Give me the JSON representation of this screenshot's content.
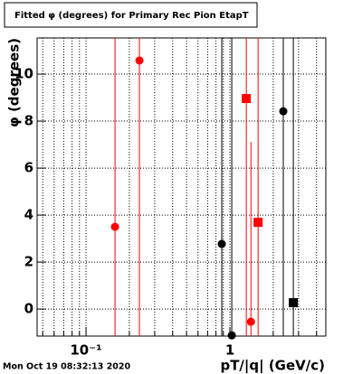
{
  "chart_data": {
    "type": "scatter",
    "title": "Fitted φ (degrees) for Primary Rec Pion EtapT",
    "x_label": "pT/|q| (GeV/c)",
    "y_label": "φ (degrees)",
    "timestamp": "Mon Oct 19 08:32:13 2020",
    "log_x": true,
    "grid": true,
    "xlim": [
      0.0457,
      4.64
    ],
    "ylim": [
      -1.15,
      11.54
    ],
    "xticks": [
      {
        "value": 0.1,
        "label": "10⁻¹"
      },
      1
    ],
    "xminorticks": [
      0.05,
      0.06,
      0.07,
      0.08,
      0.09,
      0.2,
      0.3,
      0.4,
      0.5,
      0.6,
      0.7,
      0.8,
      0.9,
      2,
      3,
      4
    ],
    "yticks": [
      0,
      2,
      4,
      6,
      8,
      10
    ],
    "series": [
      {
        "color": "#ff0000",
        "marker": "circle",
        "x": [
          0.159,
          0.235,
          1.4
        ],
        "values": [
          3.5,
          10.58,
          -0.54
        ],
        "yerr": [
          20,
          20,
          7.65
        ]
      },
      {
        "color": "#ff0000",
        "marker": "square",
        "x": [
          1.3,
          1.57
        ],
        "values": [
          8.96,
          3.69
        ],
        "yerr": [
          20,
          20
        ]
      },
      {
        "color": "#000000",
        "marker": "circle",
        "x": [
          0.878,
          1.03,
          2.35
        ],
        "values": [
          2.77,
          -1.12,
          8.42
        ],
        "yerr": [
          20,
          20,
          20
        ]
      },
      {
        "color": "#000000",
        "marker": "square",
        "x": [
          2.76
        ],
        "values": [
          0.27
        ],
        "yerr": [
          20
        ]
      }
    ]
  }
}
